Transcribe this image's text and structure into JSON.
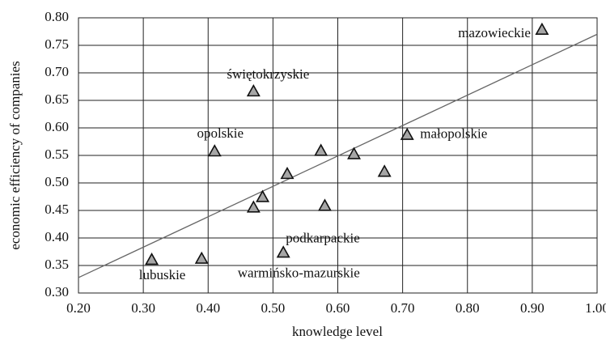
{
  "chart_data": {
    "type": "scatter",
    "xlabel": "knowledge level",
    "ylabel": "economic efficiency of companies",
    "series": [
      {
        "color": "#a6a6a6",
        "x": [
          0.915,
          0.47,
          0.41,
          0.707,
          0.574,
          0.625,
          0.672,
          0.522,
          0.484,
          0.47,
          0.58,
          0.516,
          0.39,
          0.313
        ],
        "values": [
          0.778,
          0.666,
          0.557,
          0.587,
          0.558,
          0.552,
          0.52,
          0.516,
          0.474,
          0.455,
          0.458,
          0.373,
          0.362,
          0.36
        ],
        "point_labels": [
          "mazowieckie",
          "świętokrzyskie",
          "opolskie",
          "małopolskie",
          null,
          null,
          null,
          null,
          null,
          null,
          null,
          "podkarpackie",
          "warmińsko-mazurskie",
          "lubuskie"
        ]
      }
    ],
    "trendline": {
      "color": "#666666",
      "x": [
        0.2,
        1.0
      ],
      "values": [
        0.328,
        0.77
      ]
    },
    "xlim": [
      0.2,
      1.0
    ],
    "xticks": [
      {
        "value": 0.2,
        "label": "0.20"
      },
      {
        "value": 0.3,
        "label": "0.30"
      },
      {
        "value": 0.4,
        "label": "0.40"
      },
      {
        "value": 0.5,
        "label": "0.50"
      },
      {
        "value": 0.6,
        "label": "0.60"
      },
      {
        "value": 0.7,
        "label": "0.70"
      },
      {
        "value": 0.8,
        "label": "0.80"
      },
      {
        "value": 0.9,
        "label": "0.90"
      },
      {
        "value": 1.0,
        "label": "1.00"
      }
    ],
    "ylim": [
      0.3,
      0.8
    ],
    "yticks": [
      {
        "value": 0.3,
        "label": "0.30"
      },
      {
        "value": 0.35,
        "label": "0.35"
      },
      {
        "value": 0.4,
        "label": "0.40"
      },
      {
        "value": 0.45,
        "label": "0.45"
      },
      {
        "value": 0.5,
        "label": "0.50"
      },
      {
        "value": 0.55,
        "label": "0.55"
      },
      {
        "value": 0.6,
        "label": "0.60"
      },
      {
        "value": 0.65,
        "label": "0.65"
      },
      {
        "value": 0.7,
        "label": "0.70"
      },
      {
        "value": 0.75,
        "label": "0.75"
      },
      {
        "value": 0.8,
        "label": "0.80"
      }
    ],
    "grid": true
  }
}
